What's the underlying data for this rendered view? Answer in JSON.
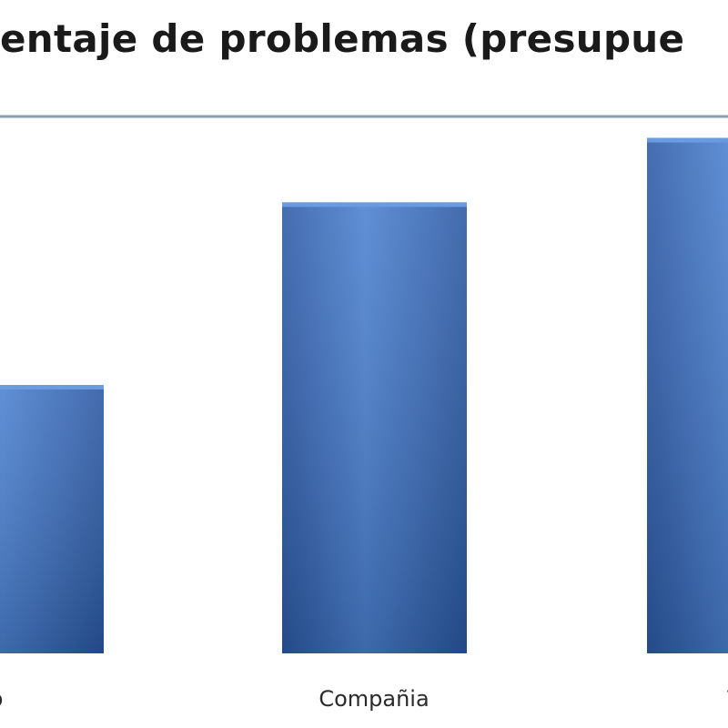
{
  "chart_data": {
    "type": "bar",
    "title": "entaje de problemas (presupue",
    "categories": [
      "tio",
      "Compañia",
      "To"
    ],
    "values": [
      50,
      84,
      96
    ],
    "ylim": [
      0,
      100
    ],
    "grid": false,
    "bar_color": "#3d6fc0",
    "axis_line_color": "#8a9bb0",
    "xlabel": "",
    "ylabel": ""
  }
}
